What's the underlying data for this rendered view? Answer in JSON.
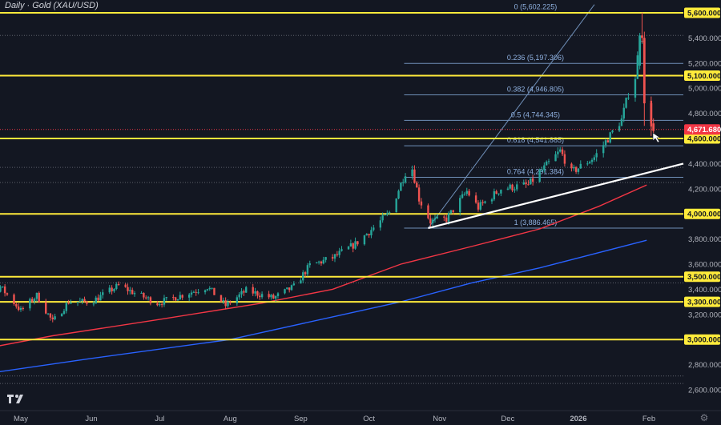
{
  "title": "Daily · Gold (XAU/USD)",
  "colors": {
    "background": "#131722",
    "axis_bg": "#131722",
    "up_candle": "#26a69a",
    "down_candle": "#ef5350",
    "level_line": "#ffeb3b",
    "fib_line": "#6f8fb8",
    "fib_text": "#8fb1e0",
    "ma_fast": "#f23645",
    "ma_slow": "#2962ff",
    "trendline": "#ffffff",
    "price_tag": "#f23645",
    "grid_dotted": "#5d606b",
    "axis_text": "#b2b5be"
  },
  "chart_data": {
    "type": "candlestick",
    "title": "Daily · Gold (XAU/USD)",
    "xlabel": "",
    "ylabel": "",
    "ylim": [
      2540,
      5660
    ],
    "x_ticks": [
      "May",
      "Jun",
      "Jul",
      "Aug",
      "Sep",
      "Oct",
      "Nov",
      "Dec",
      "2026",
      "Feb"
    ],
    "y_ticks": [
      "5,400.000",
      "5,200.000",
      "5,000.000",
      "4,800.000",
      "4,400.000",
      "4,200.000",
      "3,800.000",
      "3,600.000",
      "3,400.000",
      "3,200.000",
      "2,800.000",
      "2,600.000"
    ],
    "horizontal_levels": [
      {
        "label": "5,600.000",
        "value": 5600
      },
      {
        "label": "5,100.000",
        "value": 5100
      },
      {
        "label": "4,600.000",
        "value": 4600
      },
      {
        "label": "4,000.000",
        "value": 4000
      },
      {
        "label": "3,500.000",
        "value": 3500
      },
      {
        "label": "3,300.000",
        "value": 3300
      },
      {
        "label": "3,000.000",
        "value": 3000
      }
    ],
    "last_price": {
      "label": "4,671.680",
      "value": 4671.68
    },
    "fibonacci": [
      {
        "label": "0 (5,602.225)",
        "value": 5602.225
      },
      {
        "label": "0.236 (5,197.306)",
        "value": 5197.306
      },
      {
        "label": "0.382 (4,946.805)",
        "value": 4946.805
      },
      {
        "label": "0.5 (4,744.345)",
        "value": 4744.345
      },
      {
        "label": "0.618 (4,541.885)",
        "value": 4541.885
      },
      {
        "label": "0.764 (4,291.384)",
        "value": 4291.384
      },
      {
        "label": "1 (3,886.465)",
        "value": 3886.465
      }
    ],
    "dotted_levels": [
      5420,
      4370,
      4250,
      3450,
      2710,
      2650
    ],
    "trendline": {
      "from": [
        "2025-10-27",
        3886
      ],
      "to": [
        "2026-02-10",
        4400
      ]
    },
    "moving_averages": [
      {
        "points": [
          [
            "2025-04-01",
            2880
          ],
          [
            "2025-05-15",
            3030
          ],
          [
            "2025-07-01",
            3160
          ],
          [
            "2025-08-15",
            3290
          ],
          [
            "2025-09-15",
            3400
          ],
          [
            "2025-10-15",
            3600
          ],
          [
            "2025-11-15",
            3740
          ],
          [
            "2025-12-15",
            3880
          ],
          [
            "2026-01-10",
            4060
          ],
          [
            "2026-01-31",
            4230
          ]
        ]
      },
      {
        "points": [
          [
            "2025-04-01",
            2690
          ],
          [
            "2025-06-01",
            2850
          ],
          [
            "2025-08-01",
            3000
          ],
          [
            "2025-09-15",
            3180
          ],
          [
            "2025-10-15",
            3300
          ],
          [
            "2025-11-15",
            3450
          ],
          [
            "2025-12-15",
            3570
          ],
          [
            "2026-01-31",
            3790
          ]
        ]
      }
    ],
    "price_path": [
      [
        "2025-04-01",
        3290
      ],
      [
        "2025-04-10",
        3240
      ],
      [
        "2025-04-22",
        3420
      ],
      [
        "2025-05-01",
        3230
      ],
      [
        "2025-05-08",
        3350
      ],
      [
        "2025-05-15",
        3140
      ],
      [
        "2025-05-22",
        3300
      ],
      [
        "2025-06-01",
        3300
      ],
      [
        "2025-06-13",
        3430
      ],
      [
        "2025-06-20",
        3370
      ],
      [
        "2025-06-30",
        3290
      ],
      [
        "2025-07-07",
        3330
      ],
      [
        "2025-07-22",
        3420
      ],
      [
        "2025-07-30",
        3270
      ],
      [
        "2025-08-08",
        3390
      ],
      [
        "2025-08-20",
        3330
      ],
      [
        "2025-08-29",
        3420
      ],
      [
        "2025-09-05",
        3590
      ],
      [
        "2025-09-15",
        3650
      ],
      [
        "2025-09-25",
        3760
      ],
      [
        "2025-10-03",
        3890
      ],
      [
        "2025-10-10",
        4010
      ],
      [
        "2025-10-17",
        4330
      ],
      [
        "2025-10-20",
        4360
      ],
      [
        "2025-10-23",
        4120
      ],
      [
        "2025-10-28",
        3940
      ],
      [
        "2025-11-04",
        3960
      ],
      [
        "2025-11-13",
        4180
      ],
      [
        "2025-11-18",
        4050
      ],
      [
        "2025-11-28",
        4200
      ],
      [
        "2025-12-10",
        4230
      ],
      [
        "2025-12-24",
        4500
      ],
      [
        "2025-12-29",
        4330
      ],
      [
        "2026-01-08",
        4450
      ],
      [
        "2026-01-14",
        4600
      ],
      [
        "2026-01-20",
        4750
      ],
      [
        "2026-01-23",
        4960
      ],
      [
        "2026-01-26",
        5090
      ],
      [
        "2026-01-28",
        5400
      ],
      [
        "2026-01-29",
        5410
      ],
      [
        "2026-01-30",
        4880
      ],
      [
        "2026-02-02",
        4720
      ],
      [
        "2026-02-03",
        4660
      ]
    ]
  }
}
